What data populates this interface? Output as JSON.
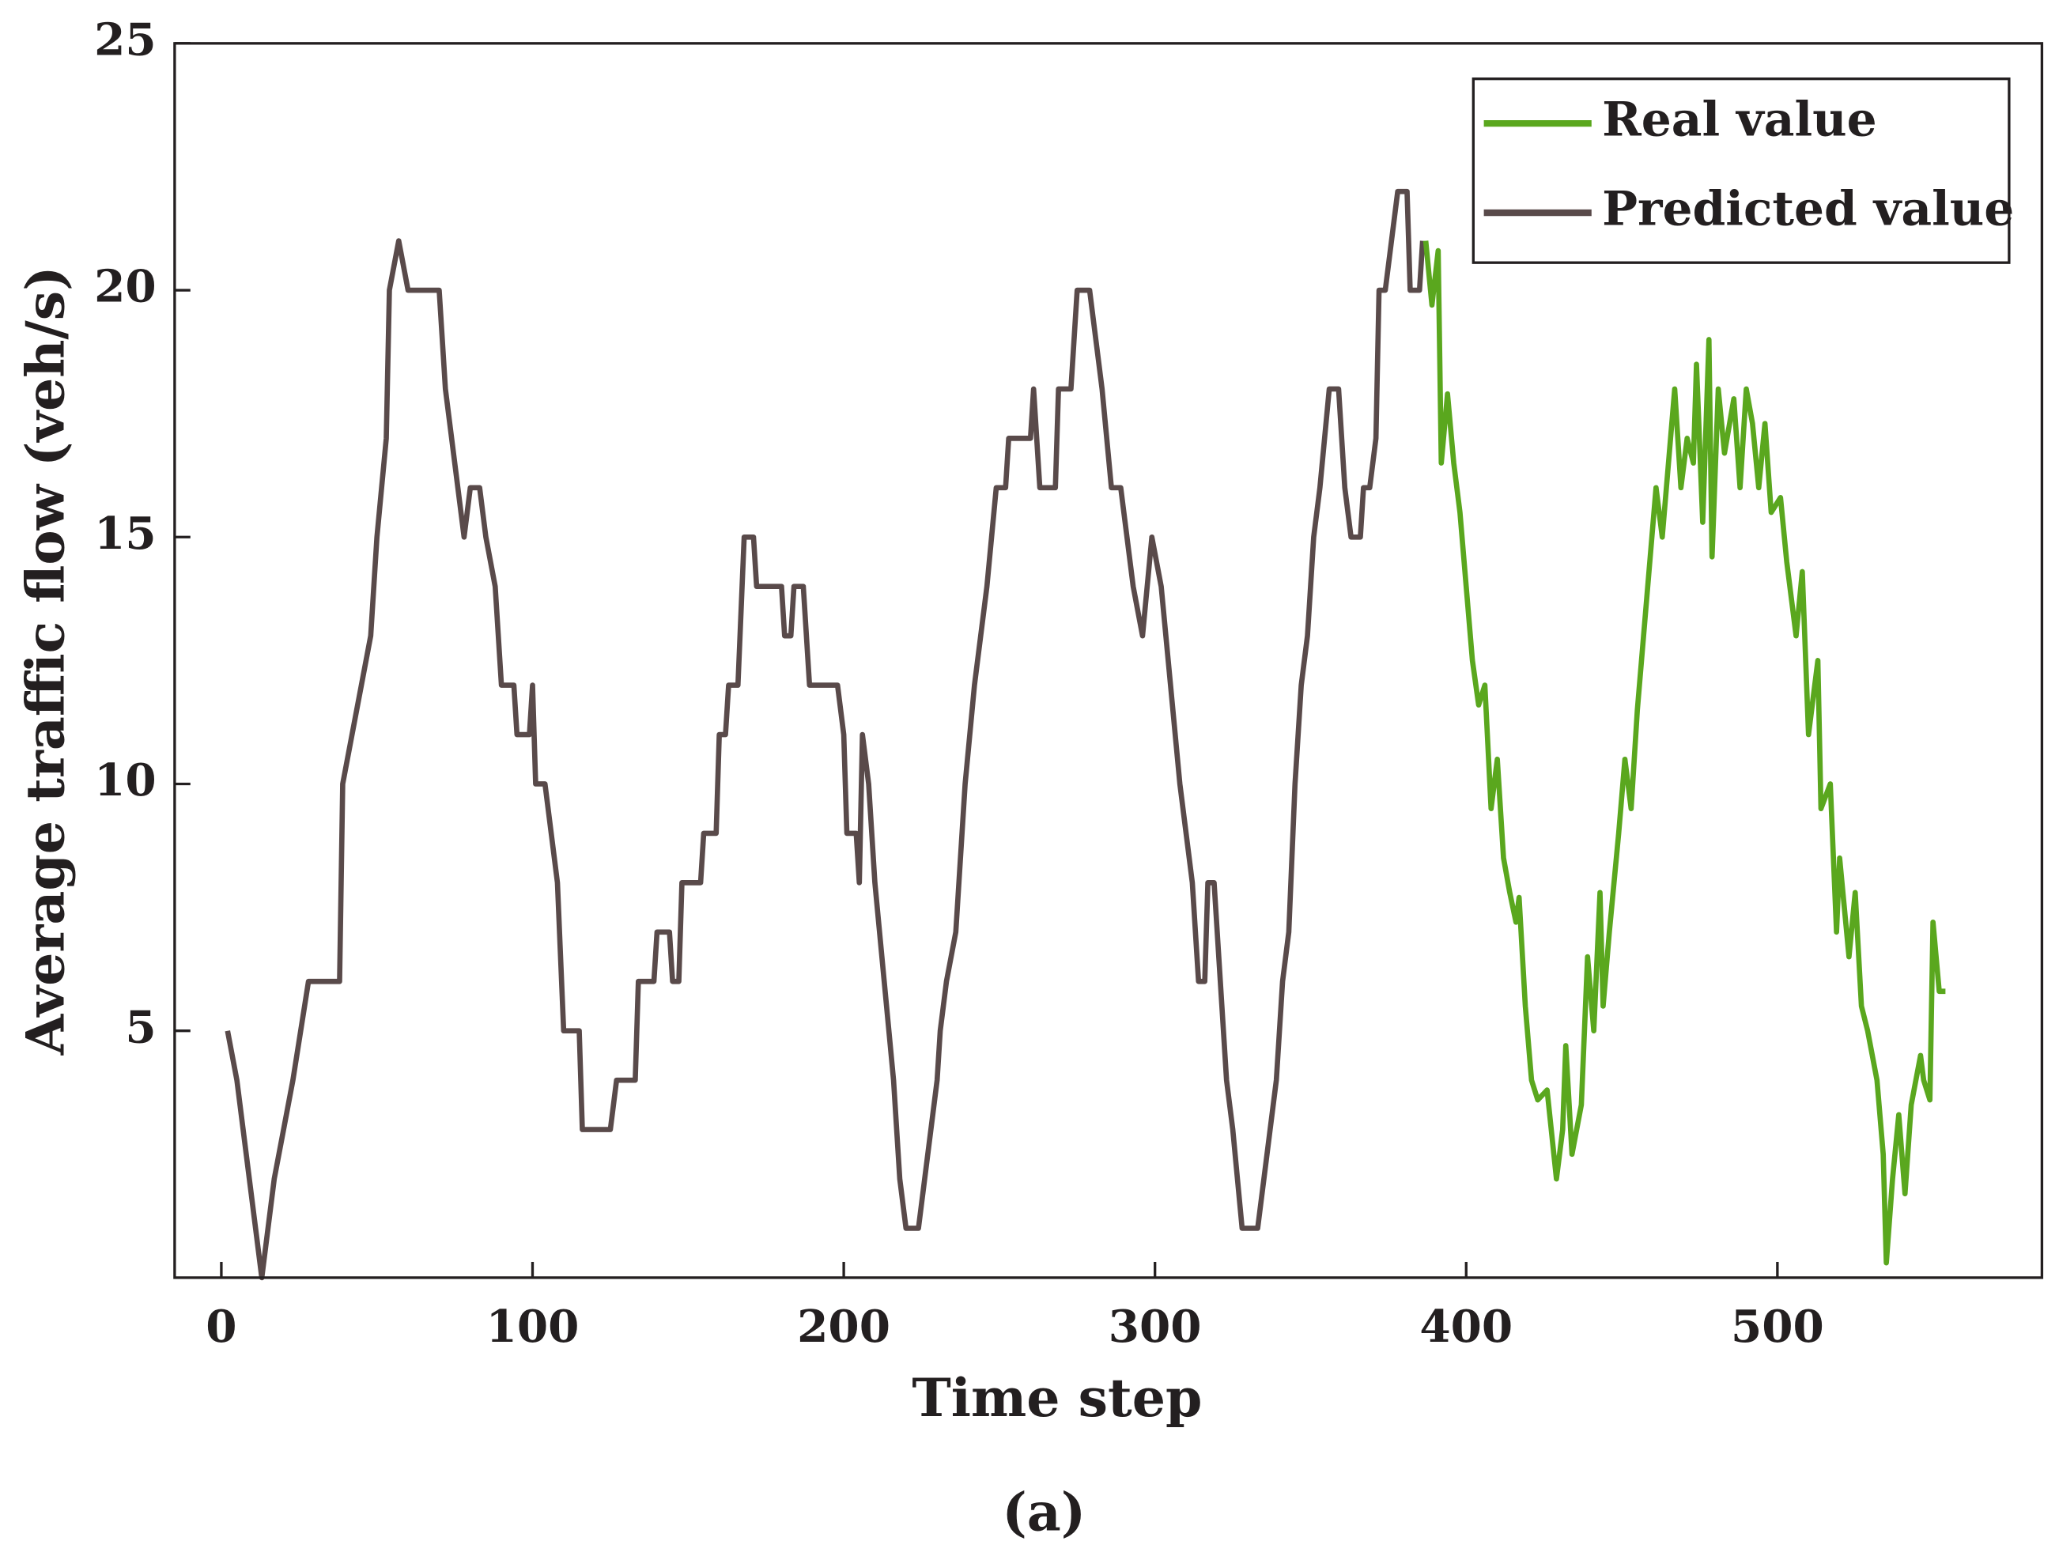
{
  "chart_data": {
    "type": "line",
    "x_label": "Time step",
    "y_label": "Average traffic flow (veh/s)",
    "caption": "(a)",
    "xlim": [
      -15,
      585
    ],
    "ylim": [
      0,
      25
    ],
    "xticks": [
      0,
      100,
      200,
      300,
      400,
      500
    ],
    "yticks": [
      5,
      10,
      15,
      20,
      25
    ],
    "legend": "upper right",
    "series": [
      {
        "name": "Real value",
        "color": "#5aa71e",
        "x": [
          387,
          389,
          391,
          392,
          394,
          396,
          398,
          400,
          402,
          404,
          406,
          408,
          410,
          412,
          414,
          416,
          417,
          419,
          421,
          423,
          426,
          429,
          431,
          432,
          434,
          437,
          439,
          441,
          443,
          444,
          446,
          449,
          451,
          453,
          455,
          457,
          459,
          461,
          463,
          465,
          467,
          469,
          471,
          473,
          474,
          476,
          478,
          479,
          481,
          483,
          486,
          488,
          490,
          492,
          494,
          496,
          498,
          501,
          503,
          506,
          508,
          510,
          513,
          514,
          517,
          519,
          520,
          523,
          525,
          527,
          529,
          532,
          534,
          535,
          537,
          539,
          541,
          543,
          546,
          547,
          549,
          550,
          552,
          554
        ],
        "values": [
          21,
          19.7,
          20.8,
          16.5,
          17.9,
          16.5,
          15.5,
          14,
          12.5,
          11.6,
          12,
          9.5,
          10.5,
          8.5,
          7.8,
          7.2,
          7.7,
          5.5,
          4,
          3.6,
          3.8,
          2,
          3,
          4.7,
          2.5,
          3.5,
          6.5,
          5,
          7.8,
          5.5,
          7,
          9,
          10.5,
          9.5,
          11.5,
          13,
          14.5,
          16,
          15,
          16.5,
          18,
          16,
          17,
          16.5,
          18.5,
          15.3,
          19,
          14.6,
          18,
          16.7,
          17.8,
          16,
          18,
          17.3,
          16,
          17.3,
          15.5,
          15.8,
          14.5,
          13,
          14.3,
          11,
          12.5,
          9.5,
          10,
          7,
          8.5,
          6.5,
          7.8,
          5.5,
          5,
          4,
          2.5,
          0.3,
          2,
          3.3,
          1.7,
          3.5,
          4.5,
          4,
          3.6,
          7.2,
          5.8,
          5.8
        ]
      },
      {
        "name": "Predicted value",
        "color": "#594a4a",
        "x": [
          2,
          5,
          7,
          9,
          11,
          13,
          15,
          17,
          20,
          23,
          28,
          38,
          39,
          42,
          45,
          48,
          50,
          53,
          54,
          57,
          60,
          70,
          72,
          74,
          76,
          78,
          80,
          83,
          85,
          88,
          90,
          94,
          95,
          99,
          100,
          101,
          104,
          106,
          108,
          110,
          115,
          116,
          125,
          127,
          133,
          134,
          139,
          140,
          144,
          145,
          147,
          148,
          154,
          155,
          159,
          160,
          162,
          163,
          166,
          168,
          171,
          172,
          180,
          181,
          183,
          184,
          187,
          189,
          193,
          198,
          200,
          201,
          204,
          205,
          206,
          208,
          210,
          213,
          216,
          218,
          220,
          224,
          226,
          228,
          230,
          231,
          233,
          236,
          239,
          242,
          244,
          246,
          249,
          252,
          253,
          260,
          261,
          263,
          268,
          269,
          273,
          275,
          279,
          281,
          283,
          286,
          289,
          291,
          293,
          296,
          299,
          302,
          305,
          308,
          310,
          312,
          314,
          316,
          317,
          319,
          321,
          323,
          325,
          328,
          333,
          335,
          337,
          339,
          341,
          343,
          345,
          347,
          349,
          351,
          353,
          356,
          359,
          361,
          363,
          366,
          367,
          369,
          371,
          372,
          374,
          376,
          378,
          381,
          382,
          385,
          386
        ],
        "values": [
          5,
          4,
          3,
          2,
          1,
          0,
          1,
          2,
          3,
          4,
          6,
          6,
          10,
          11,
          12,
          13,
          15,
          17,
          20,
          21,
          20,
          20,
          18,
          17,
          16,
          15,
          16,
          16,
          15,
          14,
          12,
          12,
          11,
          11,
          12,
          10,
          10,
          9,
          8,
          5,
          5,
          3,
          3,
          4,
          4,
          6,
          6,
          7,
          7,
          6,
          6,
          8,
          8,
          9,
          9,
          11,
          11,
          12,
          12,
          15,
          15,
          14,
          14,
          13,
          13,
          14,
          14,
          12,
          12,
          12,
          11,
          9,
          9,
          8,
          11,
          10,
          8,
          6,
          4,
          2,
          1,
          1,
          2,
          3,
          4,
          5,
          6,
          7,
          10,
          12,
          13,
          14,
          16,
          16,
          17,
          17,
          18,
          16,
          16,
          18,
          18,
          20,
          20,
          19,
          18,
          16,
          16,
          15,
          14,
          13,
          15,
          14,
          12,
          10,
          9,
          8,
          6,
          6,
          8,
          8,
          6,
          4,
          3,
          1,
          1,
          2,
          3,
          4,
          6,
          7,
          10,
          12,
          13,
          15,
          16,
          18,
          18,
          16,
          15,
          15,
          16,
          16,
          17,
          20,
          20,
          21,
          22,
          22,
          20,
          20,
          21
        ]
      }
    ]
  }
}
